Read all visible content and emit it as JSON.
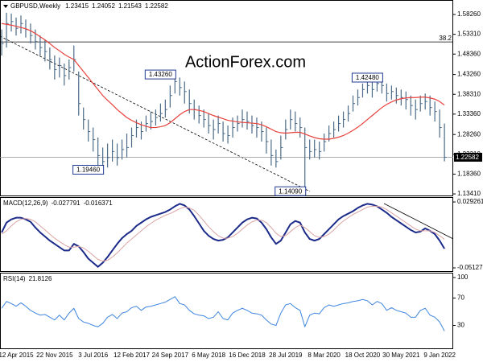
{
  "chart_data": [
    {
      "type": "ohlc",
      "title": "GBPUSD,Weekly",
      "watermark": "ActionForex.com",
      "last_bar": {
        "open": 1.23415,
        "high": 1.24052,
        "low": 1.21543,
        "close": 1.22582
      },
      "color": "#4b6b88",
      "ylim": [
        1.1302,
        1.6188
      ],
      "yticks": [
        {
          "value": 1.5826,
          "label": "1.58260"
        },
        {
          "value": 1.5331,
          "label": "1.53310"
        },
        {
          "value": 1.4836,
          "label": "1.48360"
        },
        {
          "value": 1.4326,
          "label": "1.43260"
        },
        {
          "value": 1.3831,
          "label": "1.38310"
        },
        {
          "value": 1.3336,
          "label": "1.33360"
        },
        {
          "value": 1.2826,
          "label": "1.28260"
        },
        {
          "value": 1.2331,
          "label": "1.23310"
        },
        {
          "value": 1.1836,
          "label": "1.18360"
        },
        {
          "value": 1.1341,
          "label": "1.13410"
        }
      ],
      "high": [
        1.545,
        1.587,
        1.585,
        1.575,
        1.58,
        1.57,
        1.56,
        1.545,
        1.53,
        1.52,
        1.5,
        1.48,
        1.475,
        1.46,
        1.47,
        1.505,
        1.44,
        1.35,
        1.32,
        1.3,
        1.275,
        1.25,
        1.26,
        1.27,
        1.26,
        1.27,
        1.285,
        1.3,
        1.32,
        1.315,
        1.33,
        1.34,
        1.345,
        1.36,
        1.37,
        1.405,
        1.4326,
        1.425,
        1.415,
        1.395,
        1.37,
        1.355,
        1.345,
        1.335,
        1.32,
        1.33,
        1.315,
        1.305,
        1.325,
        1.33,
        1.345,
        1.34,
        1.33,
        1.325,
        1.315,
        1.3,
        1.27,
        1.245,
        1.28,
        1.32,
        1.345,
        1.34,
        1.325,
        1.3,
        1.27,
        1.27,
        1.265,
        1.285,
        1.305,
        1.315,
        1.33,
        1.34,
        1.355,
        1.38,
        1.395,
        1.41,
        1.418,
        1.415,
        1.42,
        1.4248,
        1.41,
        1.405,
        1.4,
        1.395,
        1.39,
        1.38,
        1.37,
        1.38,
        1.385,
        1.38,
        1.365,
        1.345,
        1.31
      ],
      "low": [
        1.48,
        1.5,
        1.54,
        1.53,
        1.535,
        1.525,
        1.51,
        1.495,
        1.48,
        1.465,
        1.445,
        1.42,
        1.425,
        1.405,
        1.42,
        1.44,
        1.33,
        1.295,
        1.265,
        1.24,
        1.205,
        1.1946,
        1.2,
        1.215,
        1.205,
        1.22,
        1.225,
        1.25,
        1.275,
        1.27,
        1.29,
        1.295,
        1.305,
        1.315,
        1.325,
        1.35,
        1.385,
        1.38,
        1.36,
        1.335,
        1.32,
        1.31,
        1.3,
        1.285,
        1.27,
        1.285,
        1.265,
        1.26,
        1.275,
        1.29,
        1.3,
        1.295,
        1.285,
        1.275,
        1.265,
        1.235,
        1.205,
        1.2,
        1.22,
        1.27,
        1.295,
        1.29,
        1.275,
        1.1409,
        1.22,
        1.225,
        1.22,
        1.24,
        1.265,
        1.275,
        1.29,
        1.3,
        1.315,
        1.34,
        1.355,
        1.375,
        1.385,
        1.375,
        1.39,
        1.385,
        1.365,
        1.37,
        1.36,
        1.355,
        1.345,
        1.33,
        1.32,
        1.34,
        1.345,
        1.33,
        1.315,
        1.275,
        1.2154
      ],
      "close": [
        1.51,
        1.56,
        1.565,
        1.548,
        1.56,
        1.545,
        1.53,
        1.515,
        1.5,
        1.49,
        1.47,
        1.445,
        1.455,
        1.43,
        1.45,
        1.47,
        1.36,
        1.32,
        1.29,
        1.27,
        1.23,
        1.215,
        1.225,
        1.24,
        1.225,
        1.245,
        1.25,
        1.28,
        1.3,
        1.29,
        1.31,
        1.315,
        1.325,
        1.335,
        1.345,
        1.38,
        1.415,
        1.4,
        1.39,
        1.36,
        1.345,
        1.33,
        1.32,
        1.305,
        1.295,
        1.31,
        1.285,
        1.28,
        1.3,
        1.31,
        1.32,
        1.315,
        1.305,
        1.3,
        1.29,
        1.265,
        1.23,
        1.215,
        1.25,
        1.295,
        1.32,
        1.31,
        1.3,
        1.25,
        1.24,
        1.245,
        1.24,
        1.265,
        1.285,
        1.295,
        1.31,
        1.32,
        1.335,
        1.36,
        1.375,
        1.395,
        1.405,
        1.395,
        1.41,
        1.405,
        1.385,
        1.39,
        1.38,
        1.375,
        1.37,
        1.355,
        1.345,
        1.36,
        1.365,
        1.35,
        1.34,
        1.3,
        1.22582
      ],
      "overlay": {
        "color": "#e8413c",
        "values": [
          1.56,
          1.558,
          1.556,
          1.553,
          1.55,
          1.547,
          1.542,
          1.535,
          1.527,
          1.519,
          1.51,
          1.5,
          1.492,
          1.483,
          1.476,
          1.47,
          1.455,
          1.44,
          1.425,
          1.41,
          1.395,
          1.38,
          1.368,
          1.357,
          1.345,
          1.335,
          1.325,
          1.318,
          1.312,
          1.307,
          1.303,
          1.3,
          1.3,
          1.302,
          1.305,
          1.312,
          1.322,
          1.332,
          1.34,
          1.345,
          1.345,
          1.343,
          1.34,
          1.335,
          1.33,
          1.326,
          1.322,
          1.318,
          1.316,
          1.314,
          1.313,
          1.312,
          1.311,
          1.31,
          1.307,
          1.302,
          1.296,
          1.29,
          1.287,
          1.286,
          1.287,
          1.288,
          1.288,
          1.284,
          1.279,
          1.275,
          1.272,
          1.271,
          1.271,
          1.273,
          1.276,
          1.28,
          1.286,
          1.293,
          1.301,
          1.31,
          1.32,
          1.33,
          1.34,
          1.35,
          1.358,
          1.364,
          1.369,
          1.372,
          1.374,
          1.375,
          1.375,
          1.376,
          1.376,
          1.374,
          1.371,
          1.365,
          1.356
        ]
      },
      "fibonacci": {
        "level": 38.2,
        "price": 1.514
      },
      "annotations": [
        {
          "value": 1.4326,
          "label": "1.43260"
        },
        {
          "value": 1.1946,
          "label": "1.19460"
        },
        {
          "value": 1.4248,
          "label": "1.42480"
        },
        {
          "value": 1.1409,
          "label": "1.14090"
        }
      ]
    },
    {
      "type": "line",
      "title": "MACD(12,26,9)",
      "ylim": [
        -0.0562,
        0.0352
      ],
      "yticks": [
        0.029261,
        -0.051279
      ],
      "series": [
        {
          "color": "#1c2a8a",
          "values": [
            -0.008,
            0.004,
            0.008,
            0.01,
            0.01,
            0.008,
            0.005,
            -0.002,
            -0.008,
            -0.013,
            -0.018,
            -0.022,
            -0.026,
            -0.03,
            -0.03,
            -0.022,
            -0.025,
            -0.032,
            -0.04,
            -0.045,
            -0.05,
            -0.045,
            -0.038,
            -0.03,
            -0.022,
            -0.015,
            -0.01,
            -0.006,
            0,
            0.004,
            0.008,
            0.011,
            0.013,
            0.015,
            0.017,
            0.02,
            0.024,
            0.027,
            0.025,
            0.02,
            0.012,
            0.003,
            -0.006,
            -0.012,
            -0.016,
            -0.018,
            -0.017,
            -0.014,
            -0.008,
            -0.002,
            0.004,
            0.008,
            0.01,
            0.009,
            0.004,
            -0.004,
            -0.014,
            -0.022,
            -0.018,
            -0.008,
            0.002,
            0.006,
            0.004,
            -0.008,
            -0.016,
            -0.018,
            -0.016,
            -0.01,
            -0.004,
            0.002,
            0.008,
            0.012,
            0.015,
            0.018,
            0.022,
            0.025,
            0.027,
            0.026,
            0.024,
            0.02,
            0.016,
            0.011,
            0.007,
            0.003,
            -0.001,
            -0.005,
            -0.008,
            -0.007,
            -0.003,
            -0.006,
            -0.01,
            -0.018,
            -0.027791
          ]
        },
        {
          "color": "#dba3a3",
          "values": [
            -0.01,
            -0.006,
            0,
            0.005,
            0.008,
            0.009,
            0.008,
            0.005,
            0,
            -0.005,
            -0.01,
            -0.015,
            -0.019,
            -0.023,
            -0.026,
            -0.026,
            -0.025,
            -0.027,
            -0.031,
            -0.036,
            -0.041,
            -0.043,
            -0.042,
            -0.038,
            -0.033,
            -0.027,
            -0.021,
            -0.016,
            -0.011,
            -0.006,
            -0.001,
            0.003,
            0.007,
            0.01,
            0.013,
            0.015,
            0.018,
            0.021,
            0.023,
            0.022,
            0.019,
            0.013,
            0.006,
            -0.001,
            -0.007,
            -0.012,
            -0.015,
            -0.015,
            -0.013,
            -0.009,
            -0.004,
            0.001,
            0.005,
            0.007,
            0.007,
            0.004,
            -0.002,
            -0.009,
            -0.013,
            -0.012,
            -0.007,
            -0.002,
            0.001,
            -0.002,
            -0.007,
            -0.012,
            -0.014,
            -0.013,
            -0.01,
            -0.005,
            0.001,
            0.006,
            0.01,
            0.014,
            0.017,
            0.02,
            0.023,
            0.024,
            0.024,
            0.023,
            0.02,
            0.016,
            0.012,
            0.008,
            0.004,
            0,
            -0.004,
            -0.006,
            -0.006,
            -0.006,
            -0.008,
            -0.012,
            -0.016371
          ]
        }
      ]
    },
    {
      "type": "line",
      "title": "RSI(14)",
      "ylim": [
        -3.5,
        105.9
      ],
      "yticks": [
        100,
        70,
        30
      ],
      "categories": [
        null,
        null,
        null,
        "12 Apr 2015",
        null,
        null,
        null,
        null,
        null,
        null,
        null,
        "22 Nov 2015",
        null,
        null,
        null,
        null,
        null,
        null,
        null,
        "3 Jul 2016",
        null,
        null,
        null,
        null,
        null,
        null,
        null,
        "12 Feb 2017",
        null,
        null,
        null,
        null,
        null,
        null,
        null,
        "24 Sep 2017",
        null,
        null,
        null,
        null,
        null,
        null,
        null,
        "6 May 2018",
        null,
        null,
        null,
        null,
        null,
        null,
        null,
        "16 Dec 2018",
        null,
        null,
        null,
        null,
        null,
        null,
        null,
        "28 Jul 2019",
        null,
        null,
        null,
        null,
        null,
        null,
        null,
        "8 Mar 2020",
        null,
        null,
        null,
        null,
        null,
        null,
        null,
        "18 Oct 2020",
        null,
        null,
        null,
        null,
        null,
        null,
        null,
        "30 May 2021",
        null,
        null,
        null,
        null,
        null,
        null,
        null,
        "9 Jan 2022",
        null
      ],
      "series": [
        {
          "color": "#3f86e0",
          "values": [
            55,
            65,
            62,
            58,
            63,
            58,
            52,
            48,
            45,
            46,
            42,
            38,
            45,
            38,
            48,
            55,
            40,
            35,
            33,
            30,
            28,
            33,
            42,
            46,
            40,
            48,
            50,
            56,
            58,
            52,
            57,
            58,
            60,
            62,
            64,
            68,
            72,
            62,
            60,
            52,
            47,
            45,
            44,
            40,
            42,
            50,
            40,
            38,
            48,
            52,
            55,
            52,
            48,
            47,
            45,
            38,
            32,
            30,
            48,
            60,
            62,
            56,
            52,
            28,
            45,
            48,
            47,
            56,
            60,
            58,
            60,
            62,
            63,
            65,
            66,
            68,
            66,
            60,
            65,
            62,
            52,
            56,
            52,
            50,
            48,
            42,
            42,
            52,
            55,
            45,
            42,
            35,
            21.8126
          ]
        }
      ]
    }
  ]
}
